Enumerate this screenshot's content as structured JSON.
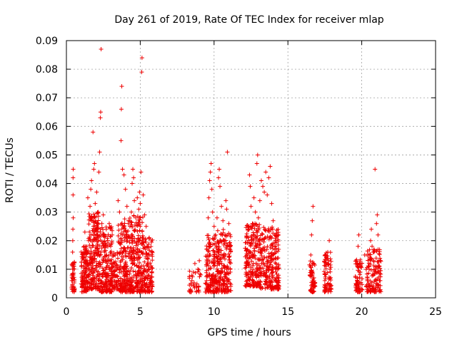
{
  "chart_data": {
    "type": "scatter",
    "title": "Day 261 of 2019, Rate Of TEC Index for receiver mlap",
    "xlabel": "GPS time / hours",
    "ylabel": "ROTI / TECUs",
    "xlim": [
      0,
      25
    ],
    "ylim": [
      0,
      0.09
    ],
    "xticks": [
      0,
      5,
      10,
      15,
      20,
      25
    ],
    "yticks": [
      0,
      0.01,
      0.02,
      0.03,
      0.04,
      0.05,
      0.06,
      0.07,
      0.08,
      0.09
    ],
    "xtick_labels": [
      "0",
      "5",
      "10",
      "15",
      "20",
      "25"
    ],
    "ytick_labels": [
      "0",
      "0.01",
      "0.02",
      "0.03",
      "0.04",
      "0.05",
      "0.06",
      "0.07",
      "0.08",
      "0.09"
    ],
    "grid": true,
    "marker": "+",
    "color": "#ee0000",
    "series": [
      {
        "name": "ROTI",
        "points": [
          [
            0.4,
            0.003
          ],
          [
            0.4,
            0.006
          ],
          [
            0.42,
            0.01
          ],
          [
            0.42,
            0.016
          ],
          [
            0.43,
            0.02
          ],
          [
            0.44,
            0.024
          ],
          [
            0.45,
            0.036
          ],
          [
            0.45,
            0.042
          ],
          [
            0.46,
            0.045
          ],
          [
            0.46,
            0.028
          ],
          [
            0.48,
            0.008
          ],
          [
            0.5,
            0.004
          ],
          [
            1.05,
            0.004
          ],
          [
            1.1,
            0.009
          ],
          [
            1.15,
            0.014
          ],
          [
            1.2,
            0.018
          ],
          [
            1.25,
            0.023
          ],
          [
            1.3,
            0.012
          ],
          [
            1.35,
            0.007
          ],
          [
            1.4,
            0.016
          ],
          [
            1.45,
            0.035
          ],
          [
            1.5,
            0.02
          ],
          [
            1.6,
            0.032
          ],
          [
            1.65,
            0.038
          ],
          [
            1.7,
            0.041
          ],
          [
            1.75,
            0.028
          ],
          [
            1.8,
            0.058
          ],
          [
            1.85,
            0.045
          ],
          [
            1.9,
            0.047
          ],
          [
            1.95,
            0.033
          ],
          [
            2.0,
            0.024
          ],
          [
            2.05,
            0.037
          ],
          [
            2.15,
            0.03
          ],
          [
            2.2,
            0.044
          ],
          [
            2.25,
            0.051
          ],
          [
            2.3,
            0.063
          ],
          [
            2.32,
            0.065
          ],
          [
            2.35,
            0.087
          ],
          [
            2.4,
            0.026
          ],
          [
            2.45,
            0.019
          ],
          [
            2.5,
            0.029
          ],
          [
            2.55,
            0.022
          ],
          [
            2.6,
            0.016
          ],
          [
            2.7,
            0.024
          ],
          [
            2.8,
            0.02
          ],
          [
            2.9,
            0.026
          ],
          [
            3.0,
            0.018
          ],
          [
            3.05,
            0.012
          ],
          [
            3.1,
            0.022
          ],
          [
            3.2,
            0.008
          ],
          [
            3.3,
            0.011
          ],
          [
            3.5,
            0.034
          ],
          [
            3.6,
            0.03
          ],
          [
            3.7,
            0.055
          ],
          [
            3.72,
            0.066
          ],
          [
            3.75,
            0.074
          ],
          [
            3.8,
            0.045
          ],
          [
            3.9,
            0.043
          ],
          [
            4.0,
            0.038
          ],
          [
            4.1,
            0.032
          ],
          [
            4.2,
            0.027
          ],
          [
            4.3,
            0.025
          ],
          [
            4.4,
            0.03
          ],
          [
            4.45,
            0.04
          ],
          [
            4.5,
            0.045
          ],
          [
            4.55,
            0.042
          ],
          [
            4.6,
            0.034
          ],
          [
            4.7,
            0.028
          ],
          [
            4.8,
            0.035
          ],
          [
            4.9,
            0.031
          ],
          [
            4.95,
            0.037
          ],
          [
            5.0,
            0.033
          ],
          [
            5.05,
            0.044
          ],
          [
            5.1,
            0.079
          ],
          [
            5.12,
            0.084
          ],
          [
            5.2,
            0.036
          ],
          [
            5.3,
            0.029
          ],
          [
            5.4,
            0.025
          ],
          [
            5.5,
            0.018
          ],
          [
            5.6,
            0.01
          ],
          [
            5.7,
            0.006
          ],
          [
            5.8,
            0.004
          ],
          [
            8.4,
            0.003
          ],
          [
            8.5,
            0.006
          ],
          [
            8.6,
            0.009
          ],
          [
            8.7,
            0.012
          ],
          [
            8.8,
            0.004
          ],
          [
            8.9,
            0.01
          ],
          [
            9.0,
            0.013
          ],
          [
            9.1,
            0.008
          ],
          [
            9.5,
            0.006
          ],
          [
            9.55,
            0.012
          ],
          [
            9.6,
            0.028
          ],
          [
            9.65,
            0.035
          ],
          [
            9.7,
            0.041
          ],
          [
            9.75,
            0.044
          ],
          [
            9.8,
            0.047
          ],
          [
            9.85,
            0.038
          ],
          [
            9.9,
            0.03
          ],
          [
            10.0,
            0.025
          ],
          [
            10.1,
            0.022
          ],
          [
            10.2,
            0.028
          ],
          [
            10.3,
            0.042
          ],
          [
            10.35,
            0.045
          ],
          [
            10.4,
            0.039
          ],
          [
            10.5,
            0.032
          ],
          [
            10.6,
            0.027
          ],
          [
            10.7,
            0.02
          ],
          [
            10.8,
            0.034
          ],
          [
            10.85,
            0.031
          ],
          [
            10.9,
            0.051
          ],
          [
            11.0,
            0.026
          ],
          [
            11.1,
            0.018
          ],
          [
            12.2,
            0.012
          ],
          [
            12.3,
            0.024
          ],
          [
            12.4,
            0.043
          ],
          [
            12.45,
            0.039
          ],
          [
            12.5,
            0.032
          ],
          [
            12.6,
            0.026
          ],
          [
            12.7,
            0.035
          ],
          [
            12.8,
            0.03
          ],
          [
            12.9,
            0.047
          ],
          [
            12.95,
            0.05
          ],
          [
            13.0,
            0.028
          ],
          [
            13.1,
            0.034
          ],
          [
            13.2,
            0.041
          ],
          [
            13.3,
            0.039
          ],
          [
            13.4,
            0.037
          ],
          [
            13.5,
            0.044
          ],
          [
            13.6,
            0.036
          ],
          [
            13.7,
            0.042
          ],
          [
            13.8,
            0.046
          ],
          [
            13.9,
            0.033
          ],
          [
            14.0,
            0.027
          ],
          [
            14.1,
            0.022
          ],
          [
            14.2,
            0.016
          ],
          [
            14.3,
            0.01
          ],
          [
            16.5,
            0.008
          ],
          [
            16.55,
            0.015
          ],
          [
            16.6,
            0.022
          ],
          [
            16.65,
            0.027
          ],
          [
            16.7,
            0.032
          ],
          [
            16.75,
            0.012
          ],
          [
            16.8,
            0.005
          ],
          [
            17.5,
            0.006
          ],
          [
            17.6,
            0.012
          ],
          [
            17.7,
            0.016
          ],
          [
            17.8,
            0.02
          ],
          [
            17.85,
            0.01
          ],
          [
            17.9,
            0.004
          ],
          [
            19.6,
            0.005
          ],
          [
            19.7,
            0.012
          ],
          [
            19.75,
            0.018
          ],
          [
            19.8,
            0.022
          ],
          [
            19.9,
            0.009
          ],
          [
            20.0,
            0.003
          ],
          [
            20.2,
            0.015
          ],
          [
            20.4,
            0.006
          ],
          [
            20.5,
            0.01
          ],
          [
            20.6,
            0.02
          ],
          [
            20.65,
            0.024
          ],
          [
            20.7,
            0.018
          ],
          [
            20.8,
            0.013
          ],
          [
            20.9,
            0.045
          ],
          [
            21.0,
            0.026
          ],
          [
            21.05,
            0.029
          ],
          [
            21.1,
            0.022
          ],
          [
            21.2,
            0.011
          ],
          [
            21.25,
            0.006
          ]
        ]
      }
    ],
    "dense_bands": [
      {
        "x": [
          0.35,
          0.55
        ],
        "y": [
          0.002,
          0.013
        ],
        "n": 40
      },
      {
        "x": [
          1.0,
          1.5
        ],
        "y": [
          0.002,
          0.018
        ],
        "n": 110
      },
      {
        "x": [
          1.5,
          2.2
        ],
        "y": [
          0.003,
          0.03
        ],
        "n": 190
      },
      {
        "x": [
          2.2,
          3.1
        ],
        "y": [
          0.002,
          0.025
        ],
        "n": 200
      },
      {
        "x": [
          3.1,
          3.5
        ],
        "y": [
          0.003,
          0.016
        ],
        "n": 60
      },
      {
        "x": [
          3.5,
          4.4
        ],
        "y": [
          0.002,
          0.028
        ],
        "n": 210
      },
      {
        "x": [
          4.4,
          5.2
        ],
        "y": [
          0.002,
          0.03
        ],
        "n": 190
      },
      {
        "x": [
          5.2,
          5.85
        ],
        "y": [
          0.002,
          0.022
        ],
        "n": 120
      },
      {
        "x": [
          8.3,
          9.1
        ],
        "y": [
          0.002,
          0.01
        ],
        "n": 35
      },
      {
        "x": [
          9.4,
          10.2
        ],
        "y": [
          0.002,
          0.022
        ],
        "n": 160
      },
      {
        "x": [
          10.2,
          11.15
        ],
        "y": [
          0.002,
          0.024
        ],
        "n": 180
      },
      {
        "x": [
          12.1,
          13.1
        ],
        "y": [
          0.004,
          0.026
        ],
        "n": 220
      },
      {
        "x": [
          13.1,
          14.4
        ],
        "y": [
          0.003,
          0.025
        ],
        "n": 240
      },
      {
        "x": [
          16.45,
          16.85
        ],
        "y": [
          0.002,
          0.013
        ],
        "n": 60
      },
      {
        "x": [
          17.45,
          17.95
        ],
        "y": [
          0.002,
          0.016
        ],
        "n": 75
      },
      {
        "x": [
          19.55,
          20.05
        ],
        "y": [
          0.002,
          0.014
        ],
        "n": 60
      },
      {
        "x": [
          20.3,
          21.3
        ],
        "y": [
          0.002,
          0.017
        ],
        "n": 140
      }
    ]
  }
}
